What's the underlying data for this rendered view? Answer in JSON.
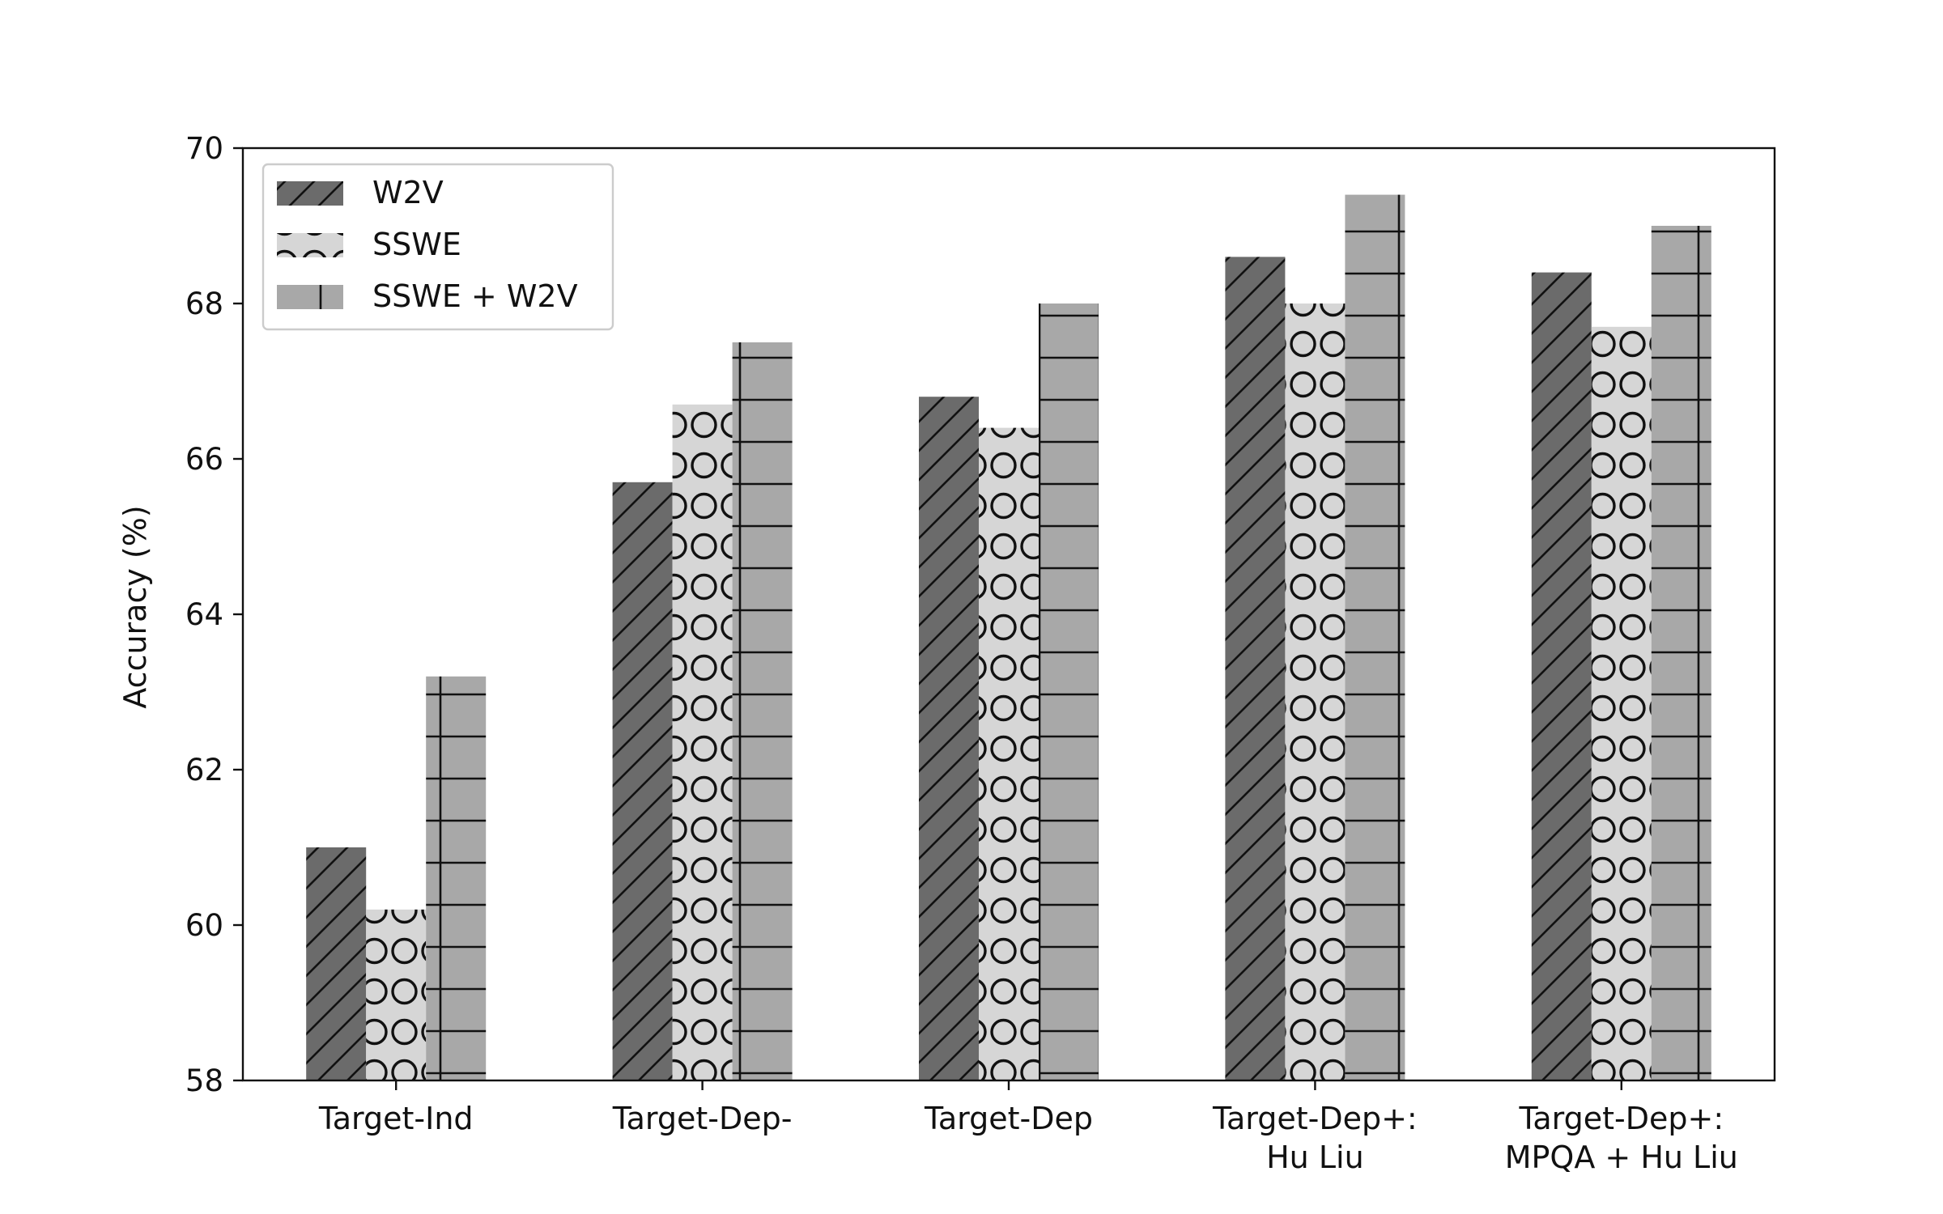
{
  "chart_data": {
    "type": "bar",
    "ylabel": "Accuracy (%)",
    "xlabel": "",
    "ylim": [
      58,
      70
    ],
    "yticks": [
      "58",
      "60",
      "62",
      "64",
      "66",
      "68",
      "70"
    ],
    "grid": false,
    "legend_position": "top-left",
    "categories": [
      [
        "Target-Ind"
      ],
      [
        "Target-Dep-"
      ],
      [
        "Target-Dep"
      ],
      [
        "Target-Dep+:",
        "Hu Liu"
      ],
      [
        "Target-Dep+:",
        "MPQA + Hu Liu"
      ]
    ],
    "series": [
      {
        "name": "W2V",
        "values": [
          61.0,
          65.7,
          66.8,
          68.6,
          68.4
        ],
        "color": "#6b6b6b",
        "pattern": "diagonal-hatch"
      },
      {
        "name": "SSWE",
        "values": [
          60.2,
          66.7,
          66.4,
          68.0,
          67.7
        ],
        "color": "#d6d6d6",
        "pattern": "circles"
      },
      {
        "name": "SSWE + W2V",
        "values": [
          63.2,
          67.5,
          68.0,
          69.4,
          69.0
        ],
        "color": "#a8a8a8",
        "pattern": "grid"
      }
    ]
  }
}
